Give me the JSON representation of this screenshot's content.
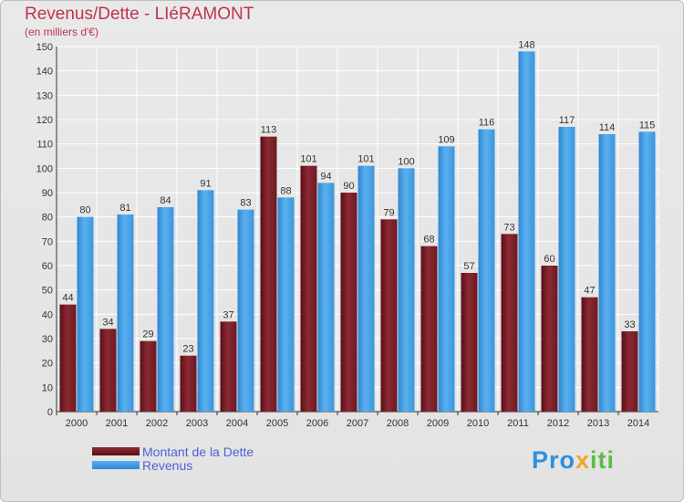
{
  "title": "Revenus/Dette - LIéRAMONT",
  "subtitle": "(en milliers d'€)",
  "logo": {
    "part1": "Pro",
    "part2": "x",
    "part3": "iti"
  },
  "legend": {
    "debt_label": "Montant de la Dette",
    "revenue_label": "Revenus"
  },
  "colors": {
    "debt": "#7a1e26",
    "revenue": "#4aa3e6",
    "title": "#c0334f",
    "legend_text": "#4d63d8"
  },
  "chart_data": {
    "type": "bar",
    "categories": [
      "2000",
      "2001",
      "2002",
      "2003",
      "2004",
      "2005",
      "2006",
      "2007",
      "2008",
      "2009",
      "2010",
      "2011",
      "2012",
      "2013",
      "2014"
    ],
    "series": [
      {
        "name": "Montant de la Dette",
        "values": [
          44,
          34,
          29,
          23,
          37,
          113,
          101,
          90,
          79,
          68,
          57,
          73,
          60,
          47,
          33
        ]
      },
      {
        "name": "Revenus",
        "values": [
          80,
          81,
          84,
          91,
          83,
          88,
          94,
          101,
          100,
          109,
          116,
          148,
          117,
          114,
          115
        ]
      }
    ],
    "ylim": [
      0,
      150
    ],
    "yticks": [
      0,
      10,
      20,
      30,
      40,
      50,
      60,
      70,
      80,
      90,
      100,
      110,
      120,
      130,
      140,
      150
    ],
    "grid": true,
    "legend_position": "bottom-left"
  }
}
